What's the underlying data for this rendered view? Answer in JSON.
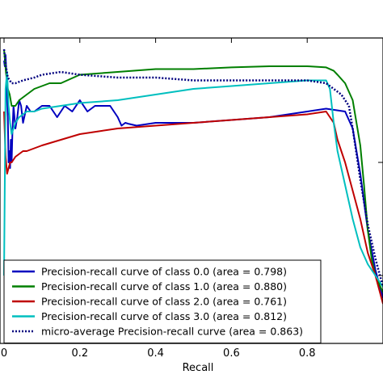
{
  "chart_data": {
    "type": "line",
    "xlabel": "Recall",
    "ylabel": "",
    "xlim": [
      0,
      1
    ],
    "ylim": [
      0.48,
      1.02
    ],
    "x_ticks": [
      0,
      0.2,
      0.4,
      0.6,
      0.8
    ],
    "x_tick_labels": [
      "0",
      "0.2",
      "0.4",
      "0.6",
      "0.8"
    ],
    "legend_position": "lower-left",
    "series": [
      {
        "name": "Precision-recall curve of class 0.0 (area = 0.798)",
        "color": "#0000bf",
        "dash": "solid",
        "x": [
          0.0,
          0.002,
          0.004,
          0.006,
          0.008,
          0.01,
          0.012,
          0.014,
          0.016,
          0.018,
          0.02,
          0.022,
          0.025,
          0.03,
          0.035,
          0.04,
          0.045,
          0.05,
          0.06,
          0.07,
          0.08,
          0.1,
          0.12,
          0.14,
          0.16,
          0.18,
          0.2,
          0.22,
          0.24,
          0.26,
          0.28,
          0.3,
          0.31,
          0.32,
          0.33,
          0.35,
          0.4,
          0.5,
          0.6,
          0.7,
          0.8,
          0.85,
          0.9,
          0.92,
          0.94,
          0.96,
          0.98,
          1.0
        ],
        "y": [
          0.98,
          0.97,
          0.99,
          0.96,
          0.91,
          0.88,
          0.8,
          0.82,
          0.79,
          0.84,
          0.8,
          0.85,
          0.9,
          0.86,
          0.88,
          0.91,
          0.9,
          0.87,
          0.9,
          0.89,
          0.89,
          0.9,
          0.9,
          0.88,
          0.9,
          0.89,
          0.91,
          0.89,
          0.9,
          0.9,
          0.9,
          0.88,
          0.865,
          0.87,
          0.868,
          0.865,
          0.87,
          0.87,
          0.875,
          0.88,
          0.89,
          0.895,
          0.89,
          0.86,
          0.78,
          0.68,
          0.61,
          0.56
        ]
      },
      {
        "name": "Precision-recall curve of class 1.0 (area = 0.880)",
        "color": "#007f00",
        "dash": "solid",
        "x": [
          0.0,
          0.005,
          0.01,
          0.015,
          0.02,
          0.03,
          0.04,
          0.06,
          0.08,
          0.1,
          0.12,
          0.15,
          0.2,
          0.3,
          0.4,
          0.5,
          0.6,
          0.7,
          0.8,
          0.85,
          0.87,
          0.88,
          0.9,
          0.92,
          0.94,
          0.95,
          0.96,
          0.97,
          0.98,
          1.0
        ],
        "y": [
          1.0,
          0.96,
          0.93,
          0.92,
          0.9,
          0.9,
          0.91,
          0.92,
          0.93,
          0.935,
          0.94,
          0.94,
          0.955,
          0.96,
          0.965,
          0.965,
          0.968,
          0.97,
          0.97,
          0.968,
          0.962,
          0.955,
          0.94,
          0.91,
          0.83,
          0.76,
          0.68,
          0.63,
          0.6,
          0.57
        ]
      },
      {
        "name": "Precision-recall curve of class 2.0 (area = 0.761)",
        "color": "#bf0000",
        "dash": "solid",
        "x": [
          0.0,
          0.004,
          0.008,
          0.012,
          0.016,
          0.02,
          0.03,
          0.04,
          0.05,
          0.06,
          0.08,
          0.1,
          0.15,
          0.2,
          0.25,
          0.3,
          0.4,
          0.5,
          0.6,
          0.7,
          0.8,
          0.85,
          0.87,
          0.88,
          0.9,
          0.92,
          0.94,
          0.96,
          0.98,
          1.0
        ],
        "y": [
          0.89,
          0.81,
          0.78,
          0.79,
          0.8,
          0.8,
          0.81,
          0.815,
          0.82,
          0.82,
          0.825,
          0.83,
          0.84,
          0.85,
          0.855,
          0.86,
          0.865,
          0.87,
          0.875,
          0.88,
          0.885,
          0.89,
          0.87,
          0.84,
          0.8,
          0.75,
          0.7,
          0.64,
          0.6,
          0.55
        ]
      },
      {
        "name": "Precision-recall curve of class 3.0 (area = 0.812)",
        "color": "#00bfbf",
        "dash": "solid",
        "x": [
          0.0,
          0.004,
          0.008,
          0.012,
          0.016,
          0.02,
          0.025,
          0.03,
          0.04,
          0.06,
          0.08,
          0.1,
          0.15,
          0.2,
          0.3,
          0.4,
          0.5,
          0.6,
          0.7,
          0.8,
          0.85,
          0.86,
          0.87,
          0.88,
          0.9,
          0.92,
          0.94,
          0.96,
          0.98,
          1.0
        ],
        "y": [
          0.6,
          0.93,
          0.96,
          0.9,
          0.87,
          0.85,
          0.86,
          0.87,
          0.88,
          0.89,
          0.89,
          0.895,
          0.9,
          0.905,
          0.91,
          0.92,
          0.93,
          0.935,
          0.94,
          0.945,
          0.945,
          0.93,
          0.87,
          0.82,
          0.76,
          0.7,
          0.65,
          0.62,
          0.6,
          0.58
        ]
      },
      {
        "name": "micro-average Precision-recall curve (area = 0.863)",
        "color": "#00007f",
        "dash": "dotted",
        "x": [
          0.0,
          0.005,
          0.01,
          0.02,
          0.03,
          0.05,
          0.08,
          0.1,
          0.15,
          0.2,
          0.3,
          0.4,
          0.5,
          0.6,
          0.7,
          0.8,
          0.85,
          0.87,
          0.89,
          0.91,
          0.92,
          0.94,
          0.96,
          0.98,
          1.0
        ],
        "y": [
          1.0,
          0.97,
          0.95,
          0.94,
          0.94,
          0.945,
          0.95,
          0.955,
          0.96,
          0.955,
          0.95,
          0.95,
          0.945,
          0.945,
          0.945,
          0.945,
          0.94,
          0.93,
          0.92,
          0.9,
          0.86,
          0.77,
          0.69,
          0.63,
          0.58
        ]
      }
    ]
  }
}
